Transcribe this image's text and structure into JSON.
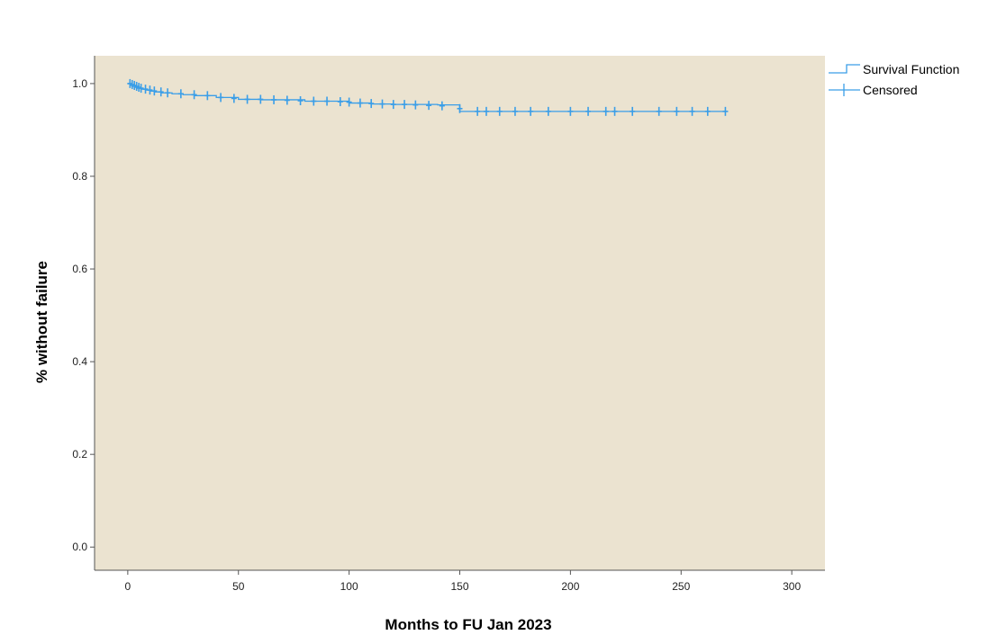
{
  "chart_data": {
    "type": "line",
    "title": "",
    "xlabel": "Months to FU Jan 2023",
    "ylabel": "% without failure",
    "xlim": [
      -15,
      315
    ],
    "ylim": [
      -0.05,
      1.06
    ],
    "x_ticks": [
      0,
      50,
      100,
      150,
      200,
      250,
      300
    ],
    "y_ticks": [
      0.0,
      0.2,
      0.4,
      0.6,
      0.8,
      1.0
    ],
    "y_tick_labels": [
      "0.0",
      "0.2",
      "0.4",
      "0.6",
      "0.8",
      "1.0"
    ],
    "grid": false,
    "legend_position": "top-right, outside plot",
    "colors": {
      "plot_background": "#ebe3d0",
      "series": "#3a9ee8",
      "page_background": "#ffffff",
      "frame": "#555555"
    },
    "series": [
      {
        "name": "Survival Function",
        "style": "step",
        "x": [
          0,
          1,
          2,
          3,
          4,
          6,
          8,
          10,
          12,
          15,
          20,
          25,
          30,
          40,
          50,
          60,
          80,
          100,
          110,
          120,
          140,
          150,
          160,
          200,
          240,
          270
        ],
        "y": [
          1.0,
          0.996,
          0.994,
          0.992,
          0.99,
          0.988,
          0.986,
          0.984,
          0.982,
          0.98,
          0.978,
          0.976,
          0.974,
          0.97,
          0.966,
          0.965,
          0.962,
          0.958,
          0.956,
          0.955,
          0.954,
          0.94,
          0.94,
          0.94,
          0.94,
          0.94
        ]
      },
      {
        "name": "Censored",
        "style": "markers",
        "marker": "plus",
        "x": [
          1,
          2,
          3,
          4,
          5,
          6,
          8,
          10,
          12,
          15,
          18,
          24,
          30,
          36,
          42,
          48,
          54,
          60,
          66,
          72,
          78,
          84,
          90,
          96,
          100,
          105,
          110,
          115,
          120,
          125,
          130,
          136,
          142,
          150,
          158,
          162,
          168,
          175,
          182,
          190,
          200,
          208,
          216,
          220,
          228,
          240,
          248,
          255,
          262,
          270
        ],
        "y": [
          1.0,
          0.998,
          0.996,
          0.994,
          0.992,
          0.99,
          0.988,
          0.986,
          0.984,
          0.982,
          0.98,
          0.978,
          0.976,
          0.974,
          0.97,
          0.968,
          0.966,
          0.966,
          0.965,
          0.964,
          0.963,
          0.962,
          0.962,
          0.961,
          0.96,
          0.958,
          0.957,
          0.956,
          0.955,
          0.955,
          0.954,
          0.953,
          0.952,
          0.946,
          0.94,
          0.94,
          0.94,
          0.94,
          0.94,
          0.94,
          0.94,
          0.94,
          0.94,
          0.94,
          0.94,
          0.94,
          0.94,
          0.94,
          0.94,
          0.94
        ]
      }
    ]
  }
}
